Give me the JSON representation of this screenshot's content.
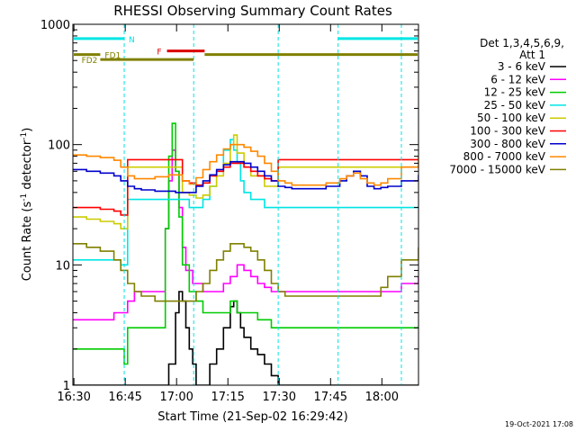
{
  "chart_data": {
    "type": "line",
    "title": "RHESSI Observing Summary Count Rates",
    "xlabel": "Start Time (21-Sep-02 16:29:42)",
    "ylabel_main": "Count Rate (s",
    "ylabel_sup1": "-1",
    "ylabel_mid": " detector",
    "ylabel_sup2": "-1",
    "ylabel_end": ")",
    "x_unit": "minutes after 16:29:42",
    "xlim": [
      0,
      101
    ],
    "ylim": [
      1,
      1000
    ],
    "yscale": "log",
    "x_ticks": [
      {
        "label": "16:30",
        "x": 0.3
      },
      {
        "label": "16:45",
        "x": 15.3
      },
      {
        "label": "17:00",
        "x": 30.3
      },
      {
        "label": "17:15",
        "x": 45.3
      },
      {
        "label": "17:30",
        "x": 60.3
      },
      {
        "label": "17:45",
        "x": 75.3
      },
      {
        "label": "18:00",
        "x": 90.3
      }
    ],
    "y_ticks": [
      {
        "label": "1",
        "y": 1
      },
      {
        "label": "10",
        "y": 10
      },
      {
        "label": "100",
        "y": 100
      },
      {
        "label": "1000",
        "y": 1000
      }
    ],
    "legend_title": [
      "Det 1,3,4,5,6,9,",
      "Att 1"
    ],
    "legend_placement": "right",
    "series": [
      {
        "name": "3 - 6 keV",
        "color": "#000000",
        "x": [
          0,
          6,
          12,
          16,
          20,
          26,
          28,
          30,
          31,
          32,
          33,
          34,
          35,
          36,
          38,
          40,
          42,
          44,
          46,
          47,
          48,
          49,
          50,
          52,
          54,
          56,
          58,
          60,
          62,
          70,
          80,
          86,
          88,
          90,
          92,
          95,
          101
        ],
        "y": [
          1,
          1,
          1,
          1,
          1,
          1,
          1.5,
          4,
          6,
          5,
          3,
          2,
          1.5,
          1,
          1,
          1.5,
          2,
          3,
          4.5,
          5,
          4,
          3,
          2.5,
          2,
          1.8,
          1.5,
          1.2,
          1,
          1,
          1,
          1,
          1,
          1,
          1,
          1,
          1,
          1
        ]
      },
      {
        "name": "6 - 12 keV",
        "color": "#ff00ff",
        "x": [
          0,
          6,
          10,
          12,
          14,
          16,
          18,
          20,
          24,
          27,
          28,
          29,
          30,
          31,
          32,
          33,
          35,
          38,
          40,
          42,
          44,
          46,
          48,
          50,
          52,
          54,
          56,
          58,
          60,
          64,
          68,
          72,
          76,
          80,
          86,
          88,
          90,
          92,
          96,
          101
        ],
        "y": [
          3.5,
          3.5,
          3.5,
          4,
          4,
          5,
          6,
          6,
          6,
          20,
          50,
          90,
          60,
          30,
          14,
          9,
          7,
          6,
          6,
          6,
          7,
          8,
          10,
          9,
          8,
          7,
          6.5,
          6,
          6,
          6,
          6,
          6,
          6,
          6,
          6,
          6,
          6,
          6,
          7,
          8
        ]
      },
      {
        "name": "12 - 25 keV",
        "color": "#00cc00",
        "x": [
          0,
          10,
          14,
          15,
          16,
          20,
          24,
          27,
          28,
          29,
          30,
          31,
          32,
          34,
          36,
          38,
          40,
          44,
          46,
          47,
          48,
          50,
          54,
          58,
          60,
          64,
          68,
          70,
          74,
          80,
          86,
          88,
          92,
          96,
          101
        ],
        "y": [
          2,
          2,
          2,
          1.5,
          3,
          3,
          3,
          20,
          80,
          150,
          60,
          25,
          10,
          6,
          5,
          4,
          4,
          4,
          5,
          5,
          4,
          4,
          3.5,
          3,
          3,
          3,
          3,
          3,
          3,
          3,
          3,
          3,
          3,
          3,
          3
        ]
      },
      {
        "name": "25 - 50 keV",
        "color": "#00e5e5",
        "x": [
          0,
          4,
          8,
          12,
          14,
          15,
          16,
          20,
          24,
          28,
          30,
          34,
          36,
          38,
          40,
          42,
          44,
          46,
          47,
          48,
          49,
          50,
          52,
          56,
          58,
          60,
          64,
          70,
          74,
          78,
          80,
          86,
          88,
          92,
          96,
          101
        ],
        "y": [
          11,
          11,
          11,
          11,
          10,
          10,
          35,
          35,
          35,
          35,
          35,
          30,
          30,
          35,
          45,
          60,
          90,
          110,
          90,
          70,
          50,
          40,
          35,
          30,
          30,
          30,
          30,
          30,
          30,
          30,
          30,
          30,
          30,
          30,
          30,
          30
        ]
      },
      {
        "name": "50 - 100 keV",
        "color": "#cccc00",
        "x": [
          0,
          4,
          8,
          12,
          14,
          15,
          16,
          20,
          24,
          28,
          30,
          32,
          34,
          36,
          38,
          40,
          42,
          44,
          46,
          47,
          48,
          50,
          52,
          56,
          58,
          60,
          64,
          70,
          76,
          80,
          82,
          84,
          86,
          88,
          92,
          96,
          101
        ],
        "y": [
          25,
          24,
          23,
          22,
          20,
          20,
          65,
          65,
          65,
          65,
          65,
          40,
          38,
          36,
          38,
          45,
          55,
          70,
          100,
          120,
          85,
          65,
          55,
          45,
          45,
          65,
          65,
          65,
          65,
          65,
          65,
          65,
          65,
          65,
          65,
          65,
          65
        ]
      },
      {
        "name": "100 - 300 keV",
        "color": "#ff0000",
        "x": [
          0,
          4,
          8,
          12,
          14,
          15,
          16,
          20,
          24,
          28,
          30,
          32,
          34,
          36,
          38,
          40,
          42,
          44,
          46,
          48,
          50,
          52,
          54,
          56,
          58,
          60,
          64,
          70,
          76,
          80,
          82,
          86,
          88,
          90,
          92,
          96,
          101
        ],
        "y": [
          30,
          30,
          29,
          28,
          26,
          26,
          75,
          75,
          75,
          75,
          75,
          50,
          48,
          46,
          48,
          55,
          60,
          65,
          70,
          70,
          65,
          60,
          55,
          52,
          50,
          75,
          75,
          75,
          75,
          75,
          75,
          75,
          75,
          75,
          75,
          75,
          75
        ]
      },
      {
        "name": "300 - 800 keV",
        "color": "#0000cc",
        "x": [
          0,
          4,
          8,
          12,
          14,
          16,
          18,
          20,
          24,
          28,
          30,
          32,
          34,
          36,
          38,
          40,
          42,
          44,
          46,
          48,
          50,
          52,
          54,
          56,
          58,
          60,
          62,
          64,
          66,
          70,
          74,
          78,
          80,
          82,
          84,
          86,
          88,
          90,
          92,
          96,
          101
        ],
        "y": [
          62,
          60,
          58,
          55,
          50,
          45,
          43,
          42,
          41,
          41,
          40,
          40,
          40,
          45,
          50,
          56,
          62,
          68,
          72,
          72,
          70,
          65,
          60,
          55,
          50,
          45,
          44,
          43,
          43,
          43,
          45,
          50,
          55,
          60,
          55,
          45,
          43,
          44,
          45,
          50,
          56
        ]
      },
      {
        "name": "800 - 7000 keV",
        "color": "#ff8800",
        "x": [
          0,
          4,
          8,
          12,
          14,
          16,
          18,
          20,
          24,
          28,
          30,
          32,
          34,
          36,
          38,
          40,
          42,
          44,
          46,
          48,
          50,
          52,
          54,
          56,
          58,
          60,
          62,
          64,
          66,
          70,
          74,
          78,
          80,
          82,
          84,
          86,
          88,
          90,
          92,
          96,
          101
        ],
        "y": [
          82,
          80,
          78,
          74,
          65,
          55,
          52,
          52,
          54,
          56,
          56,
          50,
          47,
          53,
          62,
          72,
          82,
          92,
          100,
          100,
          95,
          88,
          80,
          70,
          60,
          50,
          48,
          46,
          46,
          46,
          48,
          52,
          55,
          58,
          52,
          48,
          46,
          48,
          52,
          65,
          80
        ]
      },
      {
        "name": "7000 - 15000 keV",
        "color": "#808000",
        "x": [
          0,
          4,
          8,
          12,
          14,
          16,
          18,
          20,
          24,
          28,
          30,
          32,
          34,
          36,
          38,
          40,
          42,
          44,
          46,
          48,
          50,
          52,
          54,
          56,
          58,
          60,
          62,
          64,
          66,
          70,
          74,
          78,
          80,
          82,
          84,
          86,
          88,
          90,
          92,
          96,
          101
        ],
        "y": [
          15,
          14,
          13,
          11,
          9,
          7,
          6,
          5.5,
          5,
          5,
          5,
          5,
          5,
          6,
          7,
          9,
          11,
          13,
          15,
          15,
          14,
          13,
          11,
          9,
          7,
          6,
          5.5,
          5.5,
          5.5,
          5.5,
          5.5,
          5.5,
          5.5,
          5.5,
          5.5,
          5.5,
          5.5,
          6.5,
          8,
          11,
          14
        ]
      }
    ],
    "dashed_lines": {
      "color": "#00e5e5",
      "x": [
        15,
        35.3,
        60,
        77.5,
        96
      ]
    },
    "bars": [
      {
        "label": "N",
        "color": "#00e5e5",
        "y": 760,
        "segments": [
          [
            -1,
            15
          ],
          [
            77.5,
            101
          ]
        ]
      },
      {
        "label": "F",
        "color": "#dd0000",
        "y": 600,
        "segments": [
          [
            27.5,
            38.5
          ]
        ]
      },
      {
        "label": "FD1",
        "color": "#808000",
        "y": 560,
        "segments": [
          [
            -1,
            8
          ],
          [
            38.5,
            101
          ]
        ]
      },
      {
        "label": "FD2",
        "color": "#808000",
        "y": 510,
        "segments": [
          [
            8,
            35.3
          ]
        ]
      }
    ],
    "timestamp": "19-Oct-2021 17:08"
  }
}
